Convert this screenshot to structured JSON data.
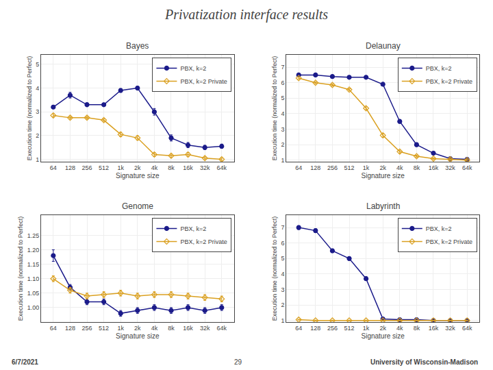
{
  "title": "Privatization interface results",
  "annotations": [
    "6/7/2021",
    "29",
    "University of Wisconsin-Madison"
  ],
  "chart_data": [
    {
      "type": "line",
      "title": "Bayes",
      "xlabel": "Signature size",
      "ylabel": "Execution time (normalized to Perfect)",
      "categories": [
        "64",
        "128",
        "256",
        "512",
        "1k",
        "2k",
        "4k",
        "8k",
        "16k",
        "32k",
        "64k"
      ],
      "ylim": [
        0.9,
        5.4
      ],
      "yticks": [
        1,
        2,
        3,
        4,
        5
      ],
      "grid": true,
      "legend": "upper right",
      "series": [
        {
          "name": "PBX, k=2",
          "color": "#1B1B8A",
          "marker": "circle",
          "values": [
            3.2,
            3.7,
            3.3,
            3.3,
            3.9,
            4.0,
            3.0,
            1.9,
            1.6,
            1.5,
            1.55
          ],
          "errors": [
            0.07,
            0.12,
            0.08,
            0.06,
            0.08,
            0.07,
            0.14,
            0.13,
            0.11,
            0.09,
            0.09
          ]
        },
        {
          "name": "PBX, k=2 Private",
          "color": "#DAA020",
          "marker": "diamond-open",
          "values": [
            2.85,
            2.75,
            2.75,
            2.65,
            2.05,
            1.9,
            1.2,
            1.15,
            1.2,
            1.05,
            1.0
          ],
          "errors": [
            0.06,
            0.05,
            0.05,
            0.05,
            0.09,
            0.09,
            0.07,
            0.07,
            0.09,
            0.06,
            0.05
          ]
        }
      ]
    },
    {
      "type": "line",
      "title": "Delaunay",
      "xlabel": "Signature size",
      "ylabel": "Execution time (normalized to Perfect)",
      "categories": [
        "64",
        "128",
        "256",
        "512",
        "1k",
        "2k",
        "4k",
        "8k",
        "16k",
        "32k",
        "64k"
      ],
      "ylim": [
        0.9,
        7.8
      ],
      "yticks": [
        1,
        2,
        3,
        4,
        5,
        6,
        7
      ],
      "grid": true,
      "legend": "upper right",
      "series": [
        {
          "name": "PBX, k=2",
          "color": "#1B1B8A",
          "marker": "circle",
          "values": [
            6.5,
            6.5,
            6.4,
            6.35,
            6.35,
            5.9,
            3.5,
            2.0,
            1.45,
            1.1,
            1.05
          ],
          "errors": [
            0.06,
            0.06,
            0.06,
            0.06,
            0.06,
            0.06,
            0.12,
            0.12,
            0.06,
            0.06,
            0.06
          ]
        },
        {
          "name": "PBX, k=2 Private",
          "color": "#DAA020",
          "marker": "diamond-open",
          "values": [
            6.3,
            6.0,
            5.85,
            5.55,
            4.35,
            2.6,
            1.55,
            1.25,
            1.1,
            1.05,
            1.0
          ],
          "errors": [
            0.06,
            0.06,
            0.06,
            0.06,
            0.09,
            0.12,
            0.09,
            0.07,
            0.06,
            0.06,
            0.06
          ]
        }
      ]
    },
    {
      "type": "line",
      "title": "Genome",
      "xlabel": "Signature size",
      "ylabel": "Execution time (normalized to Perfect)",
      "categories": [
        "64",
        "128",
        "256",
        "512",
        "1k",
        "2k",
        "4k",
        "8k",
        "16k",
        "32k",
        "64k"
      ],
      "ylim": [
        0.95,
        1.32
      ],
      "yticks": [
        {
          "value": 1.0,
          "label": "1.00"
        },
        1.05,
        {
          "value": 1.1,
          "label": "1.10"
        },
        1.15,
        {
          "value": 1.2,
          "label": "1.20"
        },
        1.25
      ],
      "grid": true,
      "legend": "upper right",
      "series": [
        {
          "name": "PBX, k=2",
          "color": "#1B1B8A",
          "marker": "circle",
          "values": [
            1.18,
            1.07,
            1.02,
            1.02,
            0.98,
            0.99,
            1.0,
            0.99,
            1.0,
            0.99,
            1.0
          ],
          "errors": [
            0.02,
            0.01,
            0.01,
            0.01,
            0.01,
            0.01,
            0.01,
            0.01,
            0.01,
            0.01,
            0.01
          ]
        },
        {
          "name": "PBX, k=2 Private",
          "color": "#DAA020",
          "marker": "diamond-open",
          "values": [
            1.1,
            1.06,
            1.04,
            1.045,
            1.05,
            1.04,
            1.045,
            1.045,
            1.04,
            1.035,
            1.03
          ],
          "errors": [
            0.01,
            0.01,
            0.01,
            0.01,
            0.01,
            0.01,
            0.01,
            0.01,
            0.01,
            0.01,
            0.01
          ]
        }
      ]
    },
    {
      "type": "line",
      "title": "Labyrinth",
      "xlabel": "Signature size",
      "ylabel": "Execution time (normalized to Perfect)",
      "categories": [
        "64",
        "128",
        "256",
        "512",
        "1k",
        "2k",
        "4k",
        "8k",
        "16k",
        "32k",
        "64k"
      ],
      "ylim": [
        0.9,
        7.8
      ],
      "yticks": [
        1,
        2,
        3,
        4,
        5,
        6,
        7
      ],
      "grid": true,
      "legend": "upper right",
      "series": [
        {
          "name": "PBX, k=2",
          "color": "#1B1B8A",
          "marker": "circle",
          "values": [
            7.0,
            6.8,
            5.5,
            5.0,
            3.7,
            1.1,
            1.05,
            1.05,
            1.0,
            1.0,
            1.0
          ],
          "errors": [
            0.12,
            0.12,
            0.12,
            0.12,
            0.12,
            0.06,
            0.06,
            0.06,
            0.05,
            0.05,
            0.05
          ]
        },
        {
          "name": "PBX, k=2 Private",
          "color": "#DAA020",
          "marker": "diamond-open",
          "values": [
            1.05,
            1.0,
            1.0,
            1.0,
            1.0,
            1.0,
            1.0,
            1.0,
            1.0,
            1.0,
            1.0
          ],
          "errors": [
            0.02,
            0.02,
            0.02,
            0.02,
            0.02,
            0.02,
            0.02,
            0.02,
            0.02,
            0.02,
            0.02
          ]
        }
      ]
    }
  ]
}
